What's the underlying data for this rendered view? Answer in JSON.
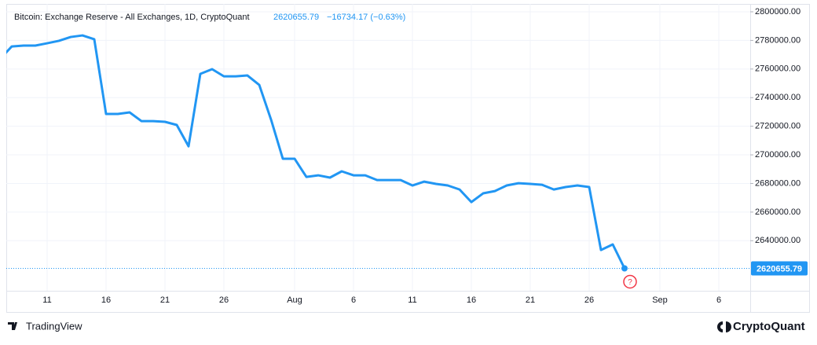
{
  "chart_data": {
    "type": "line",
    "title": "Bitcoin: Exchange Reserve - All Exchanges, 1D, CryptoQuant",
    "change_label": "−16734.17 (−0.63%)",
    "marker_label": "?",
    "watermark_left": "TradingView",
    "watermark_right": "CryptoQuant",
    "categories": [
      null,
      null,
      null,
      null,
      "11",
      null,
      null,
      null,
      null,
      "16",
      null,
      null,
      null,
      null,
      "21",
      null,
      null,
      null,
      null,
      "26",
      null,
      null,
      null,
      null,
      null,
      "Aug",
      null,
      null,
      null,
      null,
      "6",
      null,
      null,
      null,
      null,
      "11",
      null,
      null,
      null,
      null,
      "16",
      null,
      null,
      null,
      null,
      "21",
      null,
      null,
      null,
      null,
      "26",
      null,
      null,
      null,
      null,
      null,
      "Sep",
      null,
      null,
      null,
      null,
      "6",
      null,
      null
    ],
    "series": [
      {
        "name": "Bitcoin: Exchange Reserve",
        "color": "#2196f3",
        "values": [
          2767000,
          2775800,
          2776400,
          2776400,
          2778000,
          2779700,
          2782400,
          2783500,
          2780800,
          2728600,
          2728600,
          2729700,
          2723600,
          2723600,
          2723100,
          2720900,
          2706000,
          2756600,
          2759900,
          2754900,
          2754900,
          2755500,
          2748900,
          2724700,
          2697300,
          2697300,
          2684600,
          2685700,
          2684100,
          2688500,
          2685700,
          2685700,
          2682400,
          2682400,
          2682400,
          2678600,
          2681300,
          2679700,
          2678600,
          2675800,
          2667000,
          2673100,
          2674700,
          2678600,
          2680200,
          2679700,
          2679100,
          2675800,
          2677500,
          2678600,
          2677500,
          2633500,
          2637400,
          2620655.79,
          null,
          null,
          null,
          null,
          null,
          null,
          null,
          null,
          null,
          null
        ]
      }
    ],
    "ylim": [
      2605000,
      2805500
    ],
    "yticks": [
      {
        "value": 2640000,
        "label": "2640000.00"
      },
      {
        "value": 2660000,
        "label": "2660000.00"
      },
      {
        "value": 2680000,
        "label": "2680000.00"
      },
      {
        "value": 2700000,
        "label": "2700000.00"
      },
      {
        "value": 2720000,
        "label": "2720000.00"
      },
      {
        "value": 2740000,
        "label": "2740000.00"
      },
      {
        "value": 2760000,
        "label": "2760000.00"
      },
      {
        "value": 2780000,
        "label": "2780000.00"
      },
      {
        "value": 2800000,
        "label": "2800000.00"
      }
    ],
    "grid": true
  }
}
